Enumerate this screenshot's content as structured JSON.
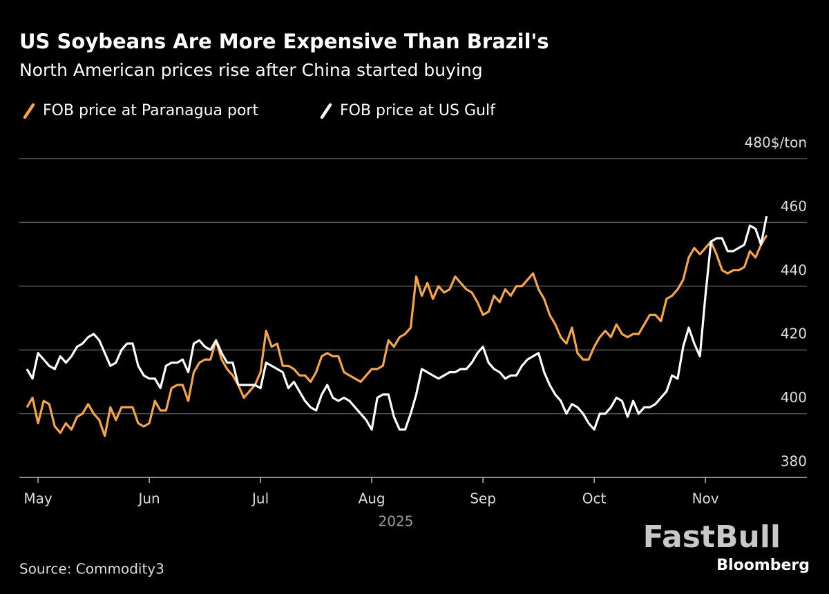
{
  "chart_data": {
    "type": "line",
    "title": "US Soybeans Are More Expensive Than Brazil's",
    "subtitle": "North American prices rise after China started buying",
    "x_label": "2025",
    "source": "Source: Commodity3",
    "watermark": "FastBull",
    "brand": "Bloomberg",
    "categories": [
      null,
      null,
      "May",
      null,
      null,
      null,
      null,
      null,
      null,
      null,
      null,
      null,
      null,
      null,
      null,
      null,
      null,
      null,
      null,
      null,
      null,
      null,
      "Jun",
      null,
      null,
      null,
      null,
      null,
      null,
      null,
      null,
      null,
      null,
      null,
      null,
      null,
      null,
      null,
      null,
      null,
      null,
      null,
      "Jul",
      null,
      null,
      null,
      null,
      null,
      null,
      null,
      null,
      null,
      null,
      null,
      null,
      null,
      null,
      null,
      null,
      null,
      null,
      null,
      "Aug",
      null,
      null,
      null,
      null,
      null,
      null,
      null,
      null,
      null,
      null,
      null,
      null,
      null,
      null,
      null,
      null,
      null,
      null,
      null,
      "Sep",
      null,
      null,
      null,
      null,
      null,
      null,
      null,
      null,
      null,
      null,
      null,
      null,
      null,
      null,
      null,
      null,
      null,
      null,
      null,
      "Oct",
      null,
      null,
      null,
      null,
      null,
      null,
      null,
      null,
      null,
      null,
      null,
      null,
      null,
      null,
      null,
      null,
      null,
      null,
      null,
      "Nov",
      null,
      null,
      null,
      null,
      null,
      null,
      null,
      null,
      null,
      null,
      null
    ],
    "series": [
      {
        "name": "FOB price at Paranagua port",
        "color": "#f5a54a",
        "values": [
          402,
          405,
          397,
          404,
          403,
          396,
          394,
          397,
          395,
          399,
          400,
          403,
          400,
          398,
          393,
          402,
          398,
          402,
          402,
          402,
          397,
          396,
          397,
          404,
          401,
          401,
          408,
          409,
          409,
          404,
          413,
          416,
          417,
          417,
          423,
          417,
          414,
          412,
          409,
          405,
          407,
          409,
          413,
          426,
          421,
          422,
          415,
          415,
          414,
          412,
          412,
          410,
          413,
          418,
          419,
          418,
          418,
          413,
          412,
          411,
          410,
          412,
          414,
          414,
          415,
          423,
          421,
          424,
          425,
          427,
          443,
          437,
          441,
          436,
          440,
          438,
          439,
          443,
          441,
          439,
          438,
          435,
          431,
          432,
          437,
          435,
          439,
          437,
          440,
          440,
          442,
          444,
          439,
          436,
          431,
          428,
          424,
          422,
          427,
          419,
          417,
          417,
          421,
          424,
          426,
          424,
          428,
          425,
          424,
          425,
          425,
          428,
          431,
          431,
          429,
          436,
          437,
          439,
          442,
          449,
          452,
          450,
          452,
          454,
          450,
          445,
          444,
          445,
          445,
          446,
          451,
          449,
          453,
          456
        ]
      },
      {
        "name": "FOB price at US Gulf",
        "color": "#ffffff",
        "values": [
          414,
          411,
          419,
          417,
          415,
          414,
          418,
          416,
          418,
          421,
          422,
          424,
          425,
          423,
          419,
          415,
          416,
          420,
          422,
          422,
          415,
          412,
          411,
          411,
          408,
          415,
          416,
          416,
          417,
          413,
          422,
          423,
          421,
          420,
          423,
          419,
          416,
          416,
          409,
          409,
          409,
          409,
          408,
          416,
          415,
          414,
          413,
          408,
          410,
          407,
          404,
          402,
          401,
          406,
          409,
          405,
          404,
          405,
          404,
          402,
          400,
          398,
          395,
          405,
          406,
          406,
          399,
          395,
          395,
          400,
          406,
          414,
          413,
          412,
          411,
          412,
          413,
          413,
          414,
          414,
          416,
          419,
          421,
          416,
          414,
          413,
          411,
          412,
          412,
          415,
          417,
          418,
          419,
          413,
          409,
          406,
          404,
          400,
          403,
          402,
          400,
          397,
          395,
          400,
          400,
          402,
          405,
          404,
          399,
          404,
          400,
          402,
          402,
          403,
          405,
          407,
          412,
          411,
          421,
          427,
          422,
          418,
          437,
          454,
          455,
          455,
          451,
          451,
          452,
          453,
          459,
          458,
          453,
          462
        ]
      }
    ],
    "ylim": [
      380,
      480
    ],
    "yticks": [
      380,
      400,
      420,
      440,
      460,
      {
        "value": 480,
        "label": "480$/ton"
      }
    ],
    "grid": true
  }
}
